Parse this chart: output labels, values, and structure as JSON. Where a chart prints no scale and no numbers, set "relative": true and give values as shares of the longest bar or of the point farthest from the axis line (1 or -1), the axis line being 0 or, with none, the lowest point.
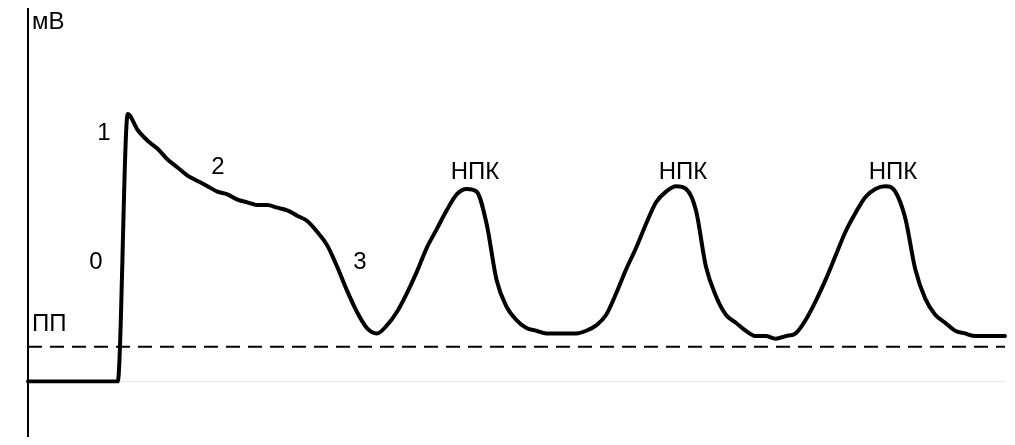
{
  "chart_data": {
    "type": "line",
    "relative": true,
    "ylabel": "мВ",
    "grid": false,
    "legend": false,
    "marker": "none",
    "line_style": "solid",
    "categories": [
      null,
      null,
      null,
      null,
      null,
      null,
      null,
      null,
      null,
      null,
      null,
      null,
      null,
      null,
      null,
      null,
      null,
      null,
      null,
      null,
      null,
      null,
      null,
      null,
      null,
      null,
      null,
      null,
      null,
      null,
      null,
      null,
      null,
      null,
      null,
      null,
      null,
      null,
      null,
      null,
      null,
      null,
      null,
      null,
      null,
      null,
      null,
      null,
      null,
      null,
      null,
      null,
      null,
      null,
      null,
      null,
      null,
      null,
      null,
      null,
      null,
      null,
      null,
      null,
      null,
      null,
      null,
      null,
      null,
      null,
      null,
      null,
      null,
      null,
      null,
      null,
      null,
      null,
      null,
      null,
      null,
      null,
      null,
      null,
      null,
      null,
      null,
      null,
      null,
      null,
      null,
      null,
      null,
      null,
      null,
      null,
      null,
      null,
      null
    ],
    "series": [
      {
        "color": "#000000",
        "values": [
          0,
          0,
          0,
          0,
          0,
          0,
          0,
          0,
          0,
          0,
          1.0,
          0.94,
          0.9,
          0.87,
          0.83,
          0.8,
          0.77,
          0.75,
          0.73,
          0.71,
          0.7,
          0.68,
          0.67,
          0.66,
          0.66,
          0.65,
          0.64,
          0.62,
          0.6,
          0.56,
          0.51,
          0.43,
          0.34,
          0.26,
          0.2,
          0.18,
          0.21,
          0.26,
          0.33,
          0.41,
          0.5,
          0.57,
          0.64,
          0.7,
          0.72,
          0.71,
          0.59,
          0.38,
          0.28,
          0.23,
          0.2,
          0.19,
          0.18,
          0.18,
          0.18,
          0.18,
          0.19,
          0.21,
          0.25,
          0.33,
          0.42,
          0.5,
          0.59,
          0.67,
          0.71,
          0.73,
          0.72,
          0.64,
          0.43,
          0.32,
          0.25,
          0.22,
          0.19,
          0.17,
          0.17,
          0.16,
          0.17,
          0.18,
          0.23,
          0.3,
          0.38,
          0.47,
          0.56,
          0.63,
          0.69,
          0.72,
          0.73,
          0.71,
          0.61,
          0.42,
          0.31,
          0.25,
          0.22,
          0.19,
          0.18,
          0.17,
          0.17,
          0.17,
          0.17
        ]
      }
    ],
    "ref_lines": [
      {
        "axis": "y",
        "value": 0.13,
        "label": "ПП",
        "color": "#000000",
        "line_style": "dashed"
      }
    ],
    "annotations": [
      "0",
      "1",
      "2",
      "3",
      "НПК",
      "НПК",
      "НПК"
    ]
  }
}
